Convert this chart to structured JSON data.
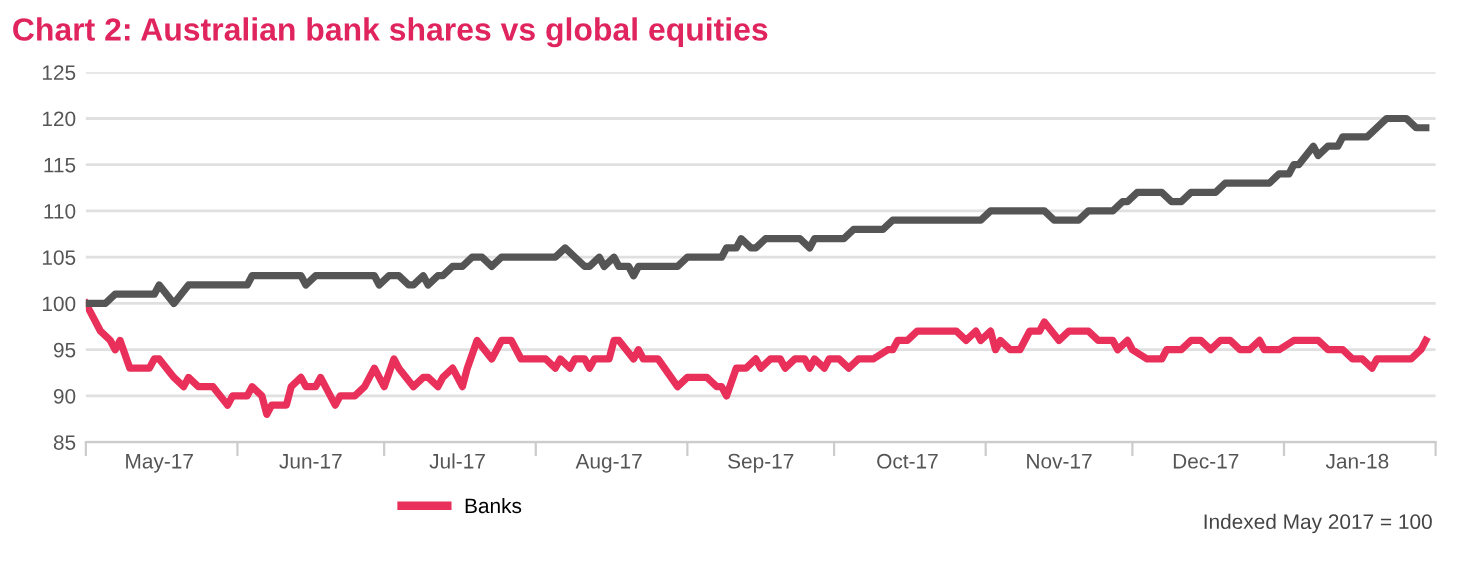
{
  "chart_data": {
    "type": "line",
    "title": "Chart 2: Australian bank shares vs global equities",
    "annotations": [
      "Indexed May 2017 = 100"
    ],
    "xlim": [
      "2017-05-01",
      "2018-02-01"
    ],
    "xticks": [
      {
        "value": "2017-05-01",
        "label": null
      },
      {
        "value": "2017-06-01",
        "label": null
      },
      {
        "value": "2017-07-01",
        "label": null
      },
      {
        "value": "2017-08-01",
        "label": null
      },
      {
        "value": "2017-09-01",
        "label": null
      },
      {
        "value": "2017-10-01",
        "label": null
      },
      {
        "value": "2017-11-01",
        "label": null
      },
      {
        "value": "2017-12-01",
        "label": null
      },
      {
        "value": "2018-01-01",
        "label": null
      },
      {
        "value": "2018-02-01",
        "label": null
      },
      {
        "value": "2017-05-16",
        "label": "May-17"
      },
      {
        "value": "2017-06-16",
        "label": "Jun-17"
      },
      {
        "value": "2017-07-16",
        "label": "Jul-17"
      },
      {
        "value": "2017-08-16",
        "label": "Aug-17"
      },
      {
        "value": "2017-09-16",
        "label": "Sep-17"
      },
      {
        "value": "2017-10-16",
        "label": "Oct-17"
      },
      {
        "value": "2017-11-16",
        "label": "Nov-17"
      },
      {
        "value": "2017-12-16",
        "label": "Dec-17"
      },
      {
        "value": "2018-01-16",
        "label": "Jan-18"
      }
    ],
    "ylim": [
      85,
      125
    ],
    "yticks": [
      85,
      90,
      95,
      100,
      105,
      110,
      115,
      120,
      125
    ],
    "grid": "y",
    "legend": "bottom",
    "marker": "none",
    "line_style": "solid",
    "series": [
      {
        "name": "Banks",
        "color": "#e8305a",
        "x": [
          "2017-05-01",
          "2017-05-04",
          "2017-05-06",
          "2017-05-07",
          "2017-05-08",
          "2017-05-10",
          "2017-05-14",
          "2017-05-15",
          "2017-05-16",
          "2017-05-19",
          "2017-05-21",
          "2017-05-22",
          "2017-05-24",
          "2017-05-27",
          "2017-05-30",
          "2017-05-31",
          "2017-06-03",
          "2017-06-04",
          "2017-06-06",
          "2017-06-07",
          "2017-06-08",
          "2017-06-11",
          "2017-06-12",
          "2017-06-14",
          "2017-06-15",
          "2017-06-17",
          "2017-06-18",
          "2017-06-19",
          "2017-06-21",
          "2017-06-22",
          "2017-06-25",
          "2017-06-27",
          "2017-06-29",
          "2017-07-01",
          "2017-07-03",
          "2017-07-04",
          "2017-07-07",
          "2017-07-09",
          "2017-07-10",
          "2017-07-12",
          "2017-07-13",
          "2017-07-15",
          "2017-07-17",
          "2017-07-18",
          "2017-07-20",
          "2017-07-23",
          "2017-07-24",
          "2017-07-25",
          "2017-07-27",
          "2017-07-29",
          "2017-08-03",
          "2017-08-05",
          "2017-08-06",
          "2017-08-08",
          "2017-08-09",
          "2017-08-11",
          "2017-08-12",
          "2017-08-13",
          "2017-08-16",
          "2017-08-17",
          "2017-08-18",
          "2017-08-21",
          "2017-08-22",
          "2017-08-23",
          "2017-08-26",
          "2017-08-30",
          "2017-09-01",
          "2017-09-05",
          "2017-09-07",
          "2017-09-08",
          "2017-09-09",
          "2017-09-11",
          "2017-09-13",
          "2017-09-15",
          "2017-09-16",
          "2017-09-18",
          "2017-09-20",
          "2017-09-21",
          "2017-09-23",
          "2017-09-25",
          "2017-09-26",
          "2017-09-27",
          "2017-09-29",
          "2017-09-30",
          "2017-10-02",
          "2017-10-04",
          "2017-10-06",
          "2017-10-09",
          "2017-10-12",
          "2017-10-13",
          "2017-10-14",
          "2017-10-16",
          "2017-10-18",
          "2017-10-26",
          "2017-10-28",
          "2017-10-30",
          "2017-10-31",
          "2017-11-02",
          "2017-11-03",
          "2017-11-04",
          "2017-11-06",
          "2017-11-08",
          "2017-11-10",
          "2017-11-12",
          "2017-11-13",
          "2017-11-16",
          "2017-11-18",
          "2017-11-22",
          "2017-11-24",
          "2017-11-27",
          "2017-11-28",
          "2017-11-30",
          "2017-12-01",
          "2017-12-04",
          "2017-12-07",
          "2017-12-08",
          "2017-12-11",
          "2017-12-13",
          "2017-12-15",
          "2017-12-17",
          "2017-12-19",
          "2017-12-21",
          "2017-12-23",
          "2017-12-25",
          "2017-12-27",
          "2017-12-28",
          "2017-12-31",
          "2018-01-03",
          "2018-01-08",
          "2018-01-10",
          "2018-01-13",
          "2018-01-15",
          "2018-01-17",
          "2018-01-19",
          "2018-01-20",
          "2018-01-27",
          "2018-01-29",
          "2018-01-30"
        ],
        "values": [
          100,
          97,
          96,
          95,
          96,
          93,
          93,
          94,
          94,
          92,
          91,
          92,
          91,
          91,
          89,
          90,
          90,
          91,
          90,
          88,
          89,
          89,
          91,
          92,
          91,
          91,
          92,
          91,
          89,
          90,
          90,
          91,
          93,
          91,
          94,
          93,
          91,
          92,
          92,
          91,
          92,
          93,
          91,
          93,
          96,
          94,
          95,
          96,
          96,
          94,
          94,
          93,
          94,
          93,
          94,
          94,
          93,
          94,
          94,
          96,
          96,
          94,
          95,
          94,
          94,
          91,
          92,
          92,
          91,
          91,
          90,
          93,
          93,
          94,
          93,
          94,
          94,
          93,
          94,
          94,
          93,
          94,
          93,
          94,
          94,
          93,
          94,
          94,
          95,
          95,
          96,
          96,
          97,
          97,
          96,
          97,
          96,
          97,
          95,
          96,
          95,
          95,
          97,
          97,
          98,
          96,
          97,
          97,
          96,
          96,
          95,
          96,
          95,
          94,
          94,
          95,
          95,
          96,
          96,
          95,
          96,
          96,
          95,
          95,
          96,
          95,
          95,
          96,
          96,
          95,
          95,
          94,
          94,
          93,
          94,
          94,
          95,
          96
        ]
      },
      {
        "color": "#555555",
        "x": [
          "2017-05-01",
          "2017-05-05",
          "2017-05-07",
          "2017-05-15",
          "2017-05-16",
          "2017-05-19",
          "2017-05-22",
          "2017-06-03",
          "2017-06-04",
          "2017-06-14",
          "2017-06-15",
          "2017-06-17",
          "2017-06-29",
          "2017-06-30",
          "2017-07-02",
          "2017-07-04",
          "2017-07-06",
          "2017-07-07",
          "2017-07-09",
          "2017-07-10",
          "2017-07-12",
          "2017-07-13",
          "2017-07-15",
          "2017-07-17",
          "2017-07-19",
          "2017-07-21",
          "2017-07-23",
          "2017-07-25",
          "2017-08-05",
          "2017-08-07",
          "2017-08-11",
          "2017-08-12",
          "2017-08-14",
          "2017-08-15",
          "2017-08-17",
          "2017-08-18",
          "2017-08-20",
          "2017-08-21",
          "2017-08-22",
          "2017-08-30",
          "2017-09-01",
          "2017-09-08",
          "2017-09-09",
          "2017-09-11",
          "2017-09-12",
          "2017-09-14",
          "2017-09-15",
          "2017-09-17",
          "2017-09-24",
          "2017-09-26",
          "2017-09-27",
          "2017-10-03",
          "2017-10-05",
          "2017-10-11",
          "2017-10-13",
          "2017-10-31",
          "2017-11-02",
          "2017-11-13",
          "2017-11-15",
          "2017-11-20",
          "2017-11-22",
          "2017-11-27",
          "2017-11-29",
          "2017-11-30",
          "2017-12-02",
          "2017-12-07",
          "2017-12-09",
          "2017-12-11",
          "2017-12-13",
          "2017-12-18",
          "2017-12-20",
          "2017-12-29",
          "2017-12-31",
          "2018-01-02",
          "2018-01-03",
          "2018-01-04",
          "2018-01-07",
          "2018-01-08",
          "2018-01-10",
          "2018-01-12",
          "2018-01-13",
          "2018-01-18",
          "2018-01-22",
          "2018-01-26",
          "2018-01-28",
          "2018-01-30"
        ],
        "values": [
          100,
          100,
          101,
          101,
          102,
          100,
          102,
          102,
          103,
          103,
          102,
          103,
          103,
          102,
          103,
          103,
          102,
          102,
          103,
          102,
          103,
          103,
          104,
          104,
          105,
          105,
          104,
          105,
          105,
          106,
          104,
          104,
          105,
          104,
          105,
          104,
          104,
          103,
          104,
          104,
          105,
          105,
          106,
          106,
          107,
          106,
          106,
          107,
          107,
          106,
          107,
          107,
          108,
          108,
          109,
          109,
          110,
          110,
          109,
          109,
          110,
          110,
          111,
          111,
          112,
          112,
          111,
          111,
          112,
          112,
          113,
          113,
          114,
          114,
          115,
          115,
          117,
          116,
          117,
          117,
          118,
          118,
          120,
          120,
          119,
          119
        ]
      }
    ]
  }
}
